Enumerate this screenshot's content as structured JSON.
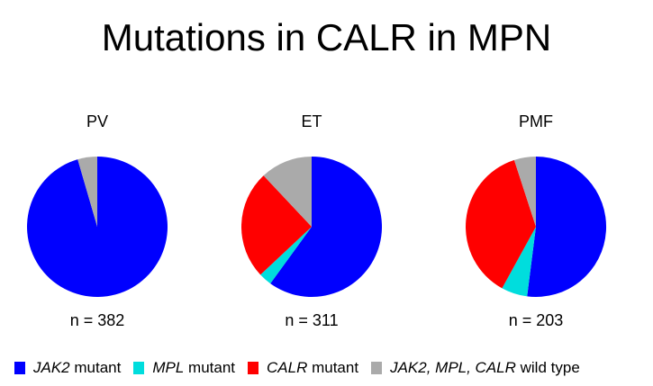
{
  "title": "Mutations in CALR in MPN",
  "chart_data": {
    "type": "pie",
    "legend_position": "bottom",
    "legend": [
      {
        "italic": "JAK2",
        "plain": " mutant",
        "color": "#0000ff"
      },
      {
        "italic": "MPL",
        "plain": " mutant",
        "color": "#00dddd"
      },
      {
        "italic": "CALR",
        "plain": " mutant",
        "color": "#ff0000"
      },
      {
        "italic": "JAK2, MPL, CALR",
        "plain": " wild type",
        "color": "#aaaaaa"
      }
    ],
    "charts": [
      {
        "title": "PV",
        "n_label": "n = 382",
        "slices": [
          {
            "category": "JAK2 mutant",
            "value": 95.5
          },
          {
            "category": "MPL mutant",
            "value": 0
          },
          {
            "category": "CALR mutant",
            "value": 0
          },
          {
            "category": "JAK2, MPL, CALR wild type",
            "value": 4.5
          }
        ]
      },
      {
        "title": "ET",
        "n_label": "n = 311",
        "slices": [
          {
            "category": "JAK2 mutant",
            "value": 60
          },
          {
            "category": "MPL mutant",
            "value": 3
          },
          {
            "category": "CALR mutant",
            "value": 25
          },
          {
            "category": "JAK2, MPL, CALR wild type",
            "value": 12
          }
        ]
      },
      {
        "title": "PMF",
        "n_label": "n = 203",
        "slices": [
          {
            "category": "JAK2 mutant",
            "value": 52
          },
          {
            "category": "MPL mutant",
            "value": 6
          },
          {
            "category": "CALR mutant",
            "value": 37
          },
          {
            "category": "JAK2, MPL, CALR wild type",
            "value": 5
          }
        ]
      }
    ]
  }
}
